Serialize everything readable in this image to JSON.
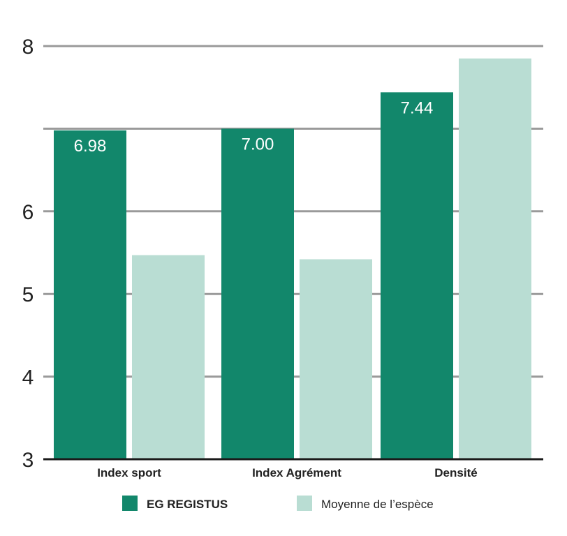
{
  "chart_data": {
    "type": "bar",
    "categories": [
      "Index sport",
      "Index Agrément",
      "Densité"
    ],
    "series": [
      {
        "name": "EG REGISTUS",
        "values": [
          6.98,
          7.0,
          7.44
        ],
        "data_labels": [
          "6.98",
          "7.00",
          "7.44"
        ],
        "color": "#12876b"
      },
      {
        "name": "Moyenne de l’espèce",
        "values": [
          5.47,
          5.42,
          7.85
        ],
        "data_labels": null,
        "color": "#b9ddd3"
      }
    ],
    "title": "",
    "xlabel": "",
    "ylabel": "",
    "ylim": [
      3,
      8
    ],
    "yticks": [
      "3",
      "4",
      "5",
      "6",
      "8"
    ],
    "grid": true,
    "legend_position": "bottom",
    "colors": {
      "grid": "#9a9a9a",
      "axis": "#1a1a1a"
    }
  }
}
